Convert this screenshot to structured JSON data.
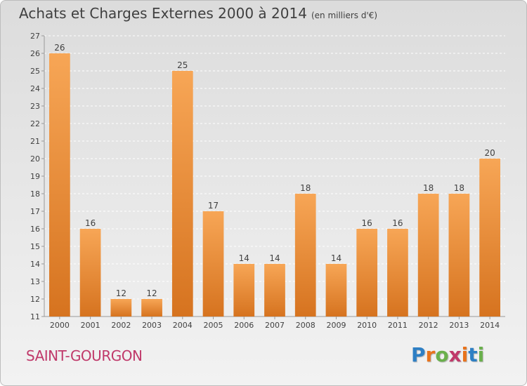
{
  "title": "Achats et Charges Externes 2000 à 2014",
  "subtitle": "(en milliers d'€)",
  "town": "SAINT-GOURGON",
  "logo": {
    "text": "Proxiti",
    "letter_colors": [
      "#2e7fc4",
      "#e8731c",
      "#6ab04c",
      "#c0396a",
      "#e8731c",
      "#2e7fc4",
      "#6ab04c"
    ]
  },
  "colors": {
    "bar_light": "#f7a656",
    "bar_dark": "#d6731f",
    "text": "#404040"
  },
  "chart_data": {
    "type": "bar",
    "categories": [
      "2000",
      "2001",
      "2002",
      "2003",
      "2004",
      "2005",
      "2006",
      "2007",
      "2008",
      "2009",
      "2010",
      "2011",
      "2012",
      "2013",
      "2014"
    ],
    "values": [
      26,
      16,
      12,
      12,
      25,
      17,
      14,
      14,
      18,
      14,
      16,
      16,
      18,
      18,
      20
    ],
    "ylim": [
      11,
      27
    ],
    "yticks": [
      11,
      12,
      13,
      14,
      15,
      16,
      17,
      18,
      19,
      20,
      21,
      22,
      23,
      24,
      25,
      26,
      27
    ],
    "grid": true,
    "data_labels": true
  }
}
